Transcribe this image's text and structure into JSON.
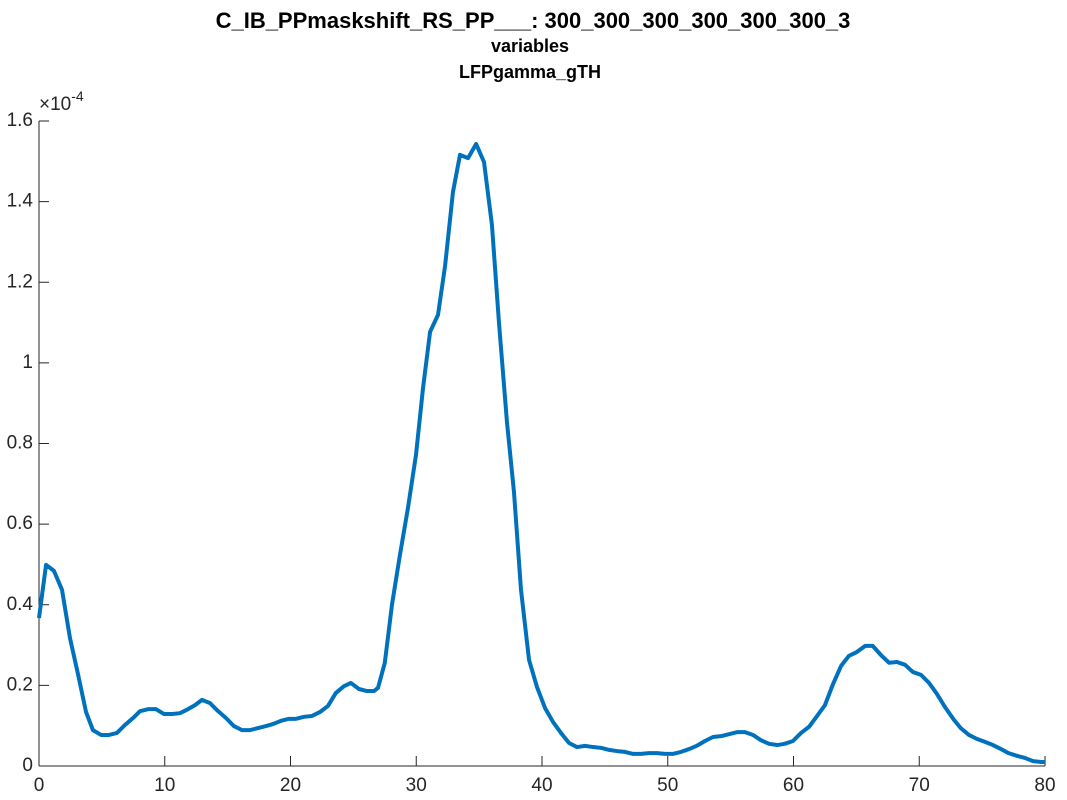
{
  "chart_data": {
    "type": "line",
    "title": "C_IB_PPmaskshift_RS_PP___: 300_300_300_300_300_300_3",
    "subtitles": [
      "variables",
      "LFPgamma_gTH"
    ],
    "y_multiplier": {
      "base": "×10",
      "exponent": "-4"
    },
    "xlim": [
      0,
      80
    ],
    "xticks": [
      0,
      10,
      20,
      30,
      40,
      50,
      60,
      70,
      80
    ],
    "ylim": [
      0,
      1.6
    ],
    "yticks": [
      0,
      0.2,
      0.4,
      0.6,
      0.8,
      1,
      1.2,
      1.4,
      1.6
    ],
    "grid": false,
    "x": [
      0,
      0.56,
      1.19,
      1.83,
      2.46,
      3.1,
      3.74,
      4.29,
      4.93,
      5.57,
      6.2,
      6.84,
      7.48,
      8.03,
      8.67,
      9.3,
      9.94,
      10.58,
      11.21,
      11.85,
      12.41,
      12.96,
      13.6,
      14.24,
      14.87,
      15.5,
      16.14,
      16.78,
      17.42,
      18.05,
      18.6,
      19.24,
      19.88,
      20.44,
      21.07,
      21.7,
      22.35,
      22.98,
      23.6,
      24.25,
      24.8,
      25.44,
      26.08,
      26.64,
      26.96,
      27.5,
      28.07,
      28.7,
      29.34,
      29.98,
      30.54,
      31.1,
      31.73,
      32.29,
      32.92,
      33.48,
      34.12,
      34.76,
      35.39,
      36.02,
      36.58,
      37.22,
      37.77,
      38.33,
      38.97,
      39.6,
      40.24,
      40.88,
      41.51,
      42.15,
      42.78,
      43.42,
      44.06,
      44.69,
      45.33,
      45.96,
      46.6,
      47.24,
      47.87,
      48.5,
      49.15,
      49.8,
      50.4,
      51.05,
      51.7,
      52.3,
      52.96,
      53.6,
      54.23,
      54.87,
      55.5,
      56.14,
      56.78,
      57.41,
      58.05,
      58.7,
      59.3,
      59.96,
      60.6,
      61.23,
      61.87,
      62.5,
      63.14,
      63.78,
      64.4,
      65.05,
      65.7,
      66.3,
      66.96,
      67.6,
      68.23,
      68.87,
      69.5,
      70.14,
      70.78,
      71.4,
      72.05,
      72.7,
      73.3,
      73.95,
      74.6,
      75.2,
      75.86,
      76.5,
      77.1,
      77.8,
      78.4,
      79.05,
      79.7,
      80
    ],
    "series": [
      {
        "name": "LFPgamma_gTH",
        "color": "#0072bd",
        "values": [
          0.367,
          0.499,
          0.484,
          0.437,
          0.318,
          0.228,
          0.134,
          0.089,
          0.077,
          0.077,
          0.082,
          0.102,
          0.119,
          0.136,
          0.141,
          0.141,
          0.129,
          0.129,
          0.131,
          0.141,
          0.151,
          0.164,
          0.156,
          0.136,
          0.119,
          0.099,
          0.089,
          0.089,
          0.094,
          0.099,
          0.104,
          0.112,
          0.117,
          0.117,
          0.122,
          0.124,
          0.134,
          0.149,
          0.181,
          0.198,
          0.206,
          0.191,
          0.186,
          0.186,
          0.194,
          0.256,
          0.4,
          0.523,
          0.64,
          0.772,
          0.938,
          1.077,
          1.119,
          1.24,
          1.424,
          1.516,
          1.508,
          1.543,
          1.498,
          1.342,
          1.099,
          0.851,
          0.68,
          0.437,
          0.263,
          0.196,
          0.144,
          0.109,
          0.082,
          0.057,
          0.047,
          0.05,
          0.047,
          0.045,
          0.04,
          0.037,
          0.035,
          0.03,
          0.03,
          0.032,
          0.032,
          0.03,
          0.03,
          0.035,
          0.042,
          0.05,
          0.062,
          0.072,
          0.074,
          0.079,
          0.084,
          0.084,
          0.077,
          0.064,
          0.055,
          0.052,
          0.055,
          0.062,
          0.082,
          0.097,
          0.124,
          0.151,
          0.203,
          0.248,
          0.273,
          0.283,
          0.298,
          0.298,
          0.275,
          0.256,
          0.258,
          0.251,
          0.233,
          0.226,
          0.206,
          0.179,
          0.146,
          0.117,
          0.094,
          0.077,
          0.067,
          0.06,
          0.052,
          0.042,
          0.032,
          0.025,
          0.02,
          0.012,
          0.01,
          0.01
        ]
      }
    ]
  }
}
